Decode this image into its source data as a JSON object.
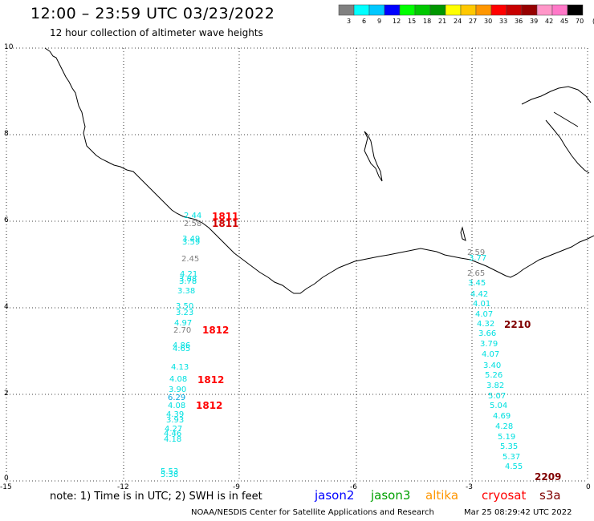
{
  "header": {
    "title": "12:00 – 23:59 UTC 03/23/2022",
    "subtitle": "12 hour collection of altimeter wave heights"
  },
  "colorbar": {
    "labels": [
      "3",
      "6",
      "9",
      "12",
      "15",
      "18",
      "21",
      "24",
      "27",
      "30",
      "33",
      "36",
      "39",
      "42",
      "45",
      "70",
      "(ft)"
    ],
    "colors": [
      "#808080",
      "#00ffff",
      "#00c8ff",
      "#0000ff",
      "#00ff00",
      "#00c800",
      "#009600",
      "#ffff00",
      "#ffc800",
      "#ff9600",
      "#ff0000",
      "#c80000",
      "#960000",
      "#ff96c8",
      "#ff78c8",
      "#000000"
    ]
  },
  "axes": {
    "x_ticks": [
      "-15",
      "-12",
      "-9",
      "-6",
      "-3",
      "0"
    ],
    "y_ticks": [
      "0",
      "2",
      "4",
      "6",
      "8",
      "10"
    ]
  },
  "wave_heights": [
    {
      "v": "2.44",
      "c": "#00e0e0"
    },
    {
      "v": "2.58",
      "c": "#808080"
    },
    {
      "v": "3.49",
      "c": "#00e0e0"
    },
    {
      "v": "3.59",
      "c": "#00e0e0"
    },
    {
      "v": "2.45",
      "c": "#808080"
    },
    {
      "v": "4.21",
      "c": "#00e0e0"
    },
    {
      "v": "3.88",
      "c": "#00e0e0"
    },
    {
      "v": "3.78",
      "c": "#00e0e0"
    },
    {
      "v": "3.38",
      "c": "#00e0e0"
    },
    {
      "v": "3.50",
      "c": "#00e0e0"
    },
    {
      "v": "3.23",
      "c": "#00e0e0"
    },
    {
      "v": "4.97",
      "c": "#00e0e0"
    },
    {
      "v": "2.70",
      "c": "#808080"
    },
    {
      "v": "4.86",
      "c": "#00e0e0"
    },
    {
      "v": "4.65",
      "c": "#00e0e0"
    },
    {
      "v": "4.13",
      "c": "#00e0e0"
    },
    {
      "v": "4.08",
      "c": "#00e0e0"
    },
    {
      "v": "3.90",
      "c": "#00e0e0"
    },
    {
      "v": "6.29",
      "c": "#00a8e0"
    },
    {
      "v": "4.08",
      "c": "#00e0e0"
    },
    {
      "v": "4.39",
      "c": "#00e0e0"
    },
    {
      "v": "3.93",
      "c": "#00e0e0"
    },
    {
      "v": "4.27",
      "c": "#00e0e0"
    },
    {
      "v": "4.46",
      "c": "#00e0e0"
    },
    {
      "v": "4.18",
      "c": "#00e0e0"
    },
    {
      "v": "5.53",
      "c": "#00e0e0"
    },
    {
      "v": "5.38",
      "c": "#00e0e0"
    },
    {
      "v": "2.59",
      "c": "#808080"
    },
    {
      "v": "3.77",
      "c": "#00e0e0"
    },
    {
      "v": "2.65",
      "c": "#808080"
    },
    {
      "v": "3.45",
      "c": "#00e0e0"
    },
    {
      "v": "4.42",
      "c": "#00e0e0"
    },
    {
      "v": "4.01",
      "c": "#00e0e0"
    },
    {
      "v": "4.07",
      "c": "#00e0e0"
    },
    {
      "v": "4.32",
      "c": "#00e0e0"
    },
    {
      "v": "3.66",
      "c": "#00e0e0"
    },
    {
      "v": "3.79",
      "c": "#00e0e0"
    },
    {
      "v": "4.07",
      "c": "#00e0e0"
    },
    {
      "v": "3.40",
      "c": "#00e0e0"
    },
    {
      "v": "5.26",
      "c": "#00e0e0"
    },
    {
      "v": "3.82",
      "c": "#00e0e0"
    },
    {
      "v": "5.07",
      "c": "#00e0e0"
    },
    {
      "v": "5.04",
      "c": "#00e0e0"
    },
    {
      "v": "4.69",
      "c": "#00e0e0"
    },
    {
      "v": "4.28",
      "c": "#00e0e0"
    },
    {
      "v": "5.19",
      "c": "#00e0e0"
    },
    {
      "v": "5.35",
      "c": "#00e0e0"
    },
    {
      "v": "5.37",
      "c": "#00e0e0"
    },
    {
      "v": "4.55",
      "c": "#00e0e0"
    }
  ],
  "pass_labels": [
    {
      "v": "1811",
      "c": "#ff0000"
    },
    {
      "v": "1811",
      "c": "#d00000"
    },
    {
      "v": "1812",
      "c": "#ff0000"
    },
    {
      "v": "1812",
      "c": "#ff0000"
    },
    {
      "v": "1812",
      "c": "#ff0000"
    },
    {
      "v": "2210",
      "c": "#800000"
    },
    {
      "v": "2209",
      "c": "#800000"
    }
  ],
  "footer": {
    "note": "note: 1) Time is in UTC; 2) SWH is in feet",
    "satellites": [
      {
        "name": "jason2",
        "color": "#0000ff"
      },
      {
        "name": "jason3",
        "color": "#00a000"
      },
      {
        "name": "altika",
        "color": "#ff9600"
      },
      {
        "name": "cryosat",
        "color": "#ff0000"
      },
      {
        "name": "s3a",
        "color": "#800000"
      }
    ],
    "credit": "NOAA/NESDIS Center for Satellite Applications and Research",
    "timestamp": "Mar 25 08:29:42 UTC 2022"
  }
}
